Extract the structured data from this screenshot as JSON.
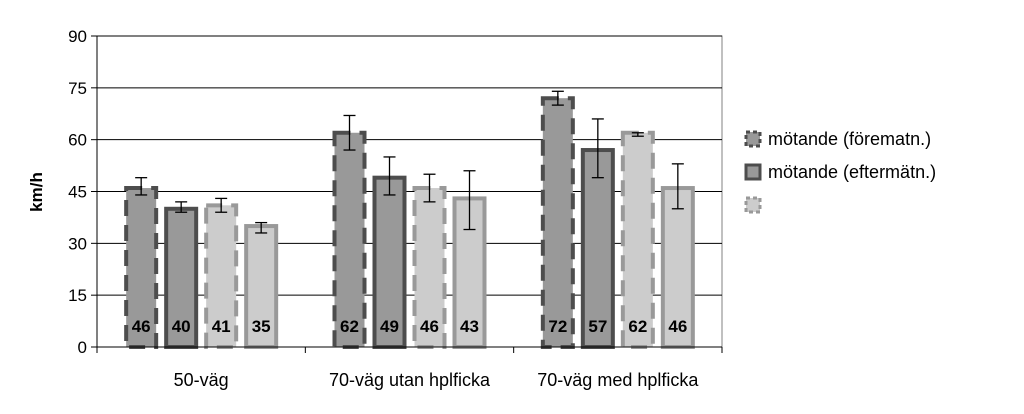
{
  "chart_data": {
    "type": "bar",
    "title": "",
    "xlabel": "",
    "ylabel": "km/h",
    "ylim": [
      0,
      90
    ],
    "yticks": [
      0,
      15,
      30,
      45,
      60,
      75,
      90
    ],
    "grid": true,
    "legend_position": "right",
    "categories": [
      "50-väg",
      "70-väg utan hplficka",
      "70-väg med hplficka"
    ],
    "series": [
      {
        "name": "mötande (förematn.)",
        "label_text": "mötande (förematn.)",
        "values": [
          46,
          62,
          72
        ],
        "err_low": [
          44,
          57,
          70
        ],
        "err_high": [
          49,
          67,
          74
        ],
        "fill": "#999999",
        "stroke": "#4d4d4d",
        "dashed": true
      },
      {
        "name": "mötande (eftermätn.)",
        "label_text": "mötande (eftermätn.)",
        "values": [
          40,
          49,
          57
        ],
        "err_low": [
          39,
          44,
          49
        ],
        "err_high": [
          42,
          55,
          66
        ],
        "fill": "#999999",
        "stroke": "#4d4d4d",
        "dashed": false
      },
      {
        "name": "",
        "label_text": "",
        "values": [
          41,
          46,
          62
        ],
        "err_low": [
          39,
          42,
          61
        ],
        "err_high": [
          43,
          50,
          62
        ],
        "fill": "#cccccc",
        "stroke": "#999999",
        "dashed": true
      },
      {
        "name": "",
        "label_text": "",
        "values": [
          35,
          43,
          46
        ],
        "err_low": [
          33,
          34,
          40
        ],
        "err_high": [
          36,
          51,
          53
        ],
        "fill": "#cccccc",
        "stroke": "#999999",
        "dashed": false
      }
    ]
  }
}
